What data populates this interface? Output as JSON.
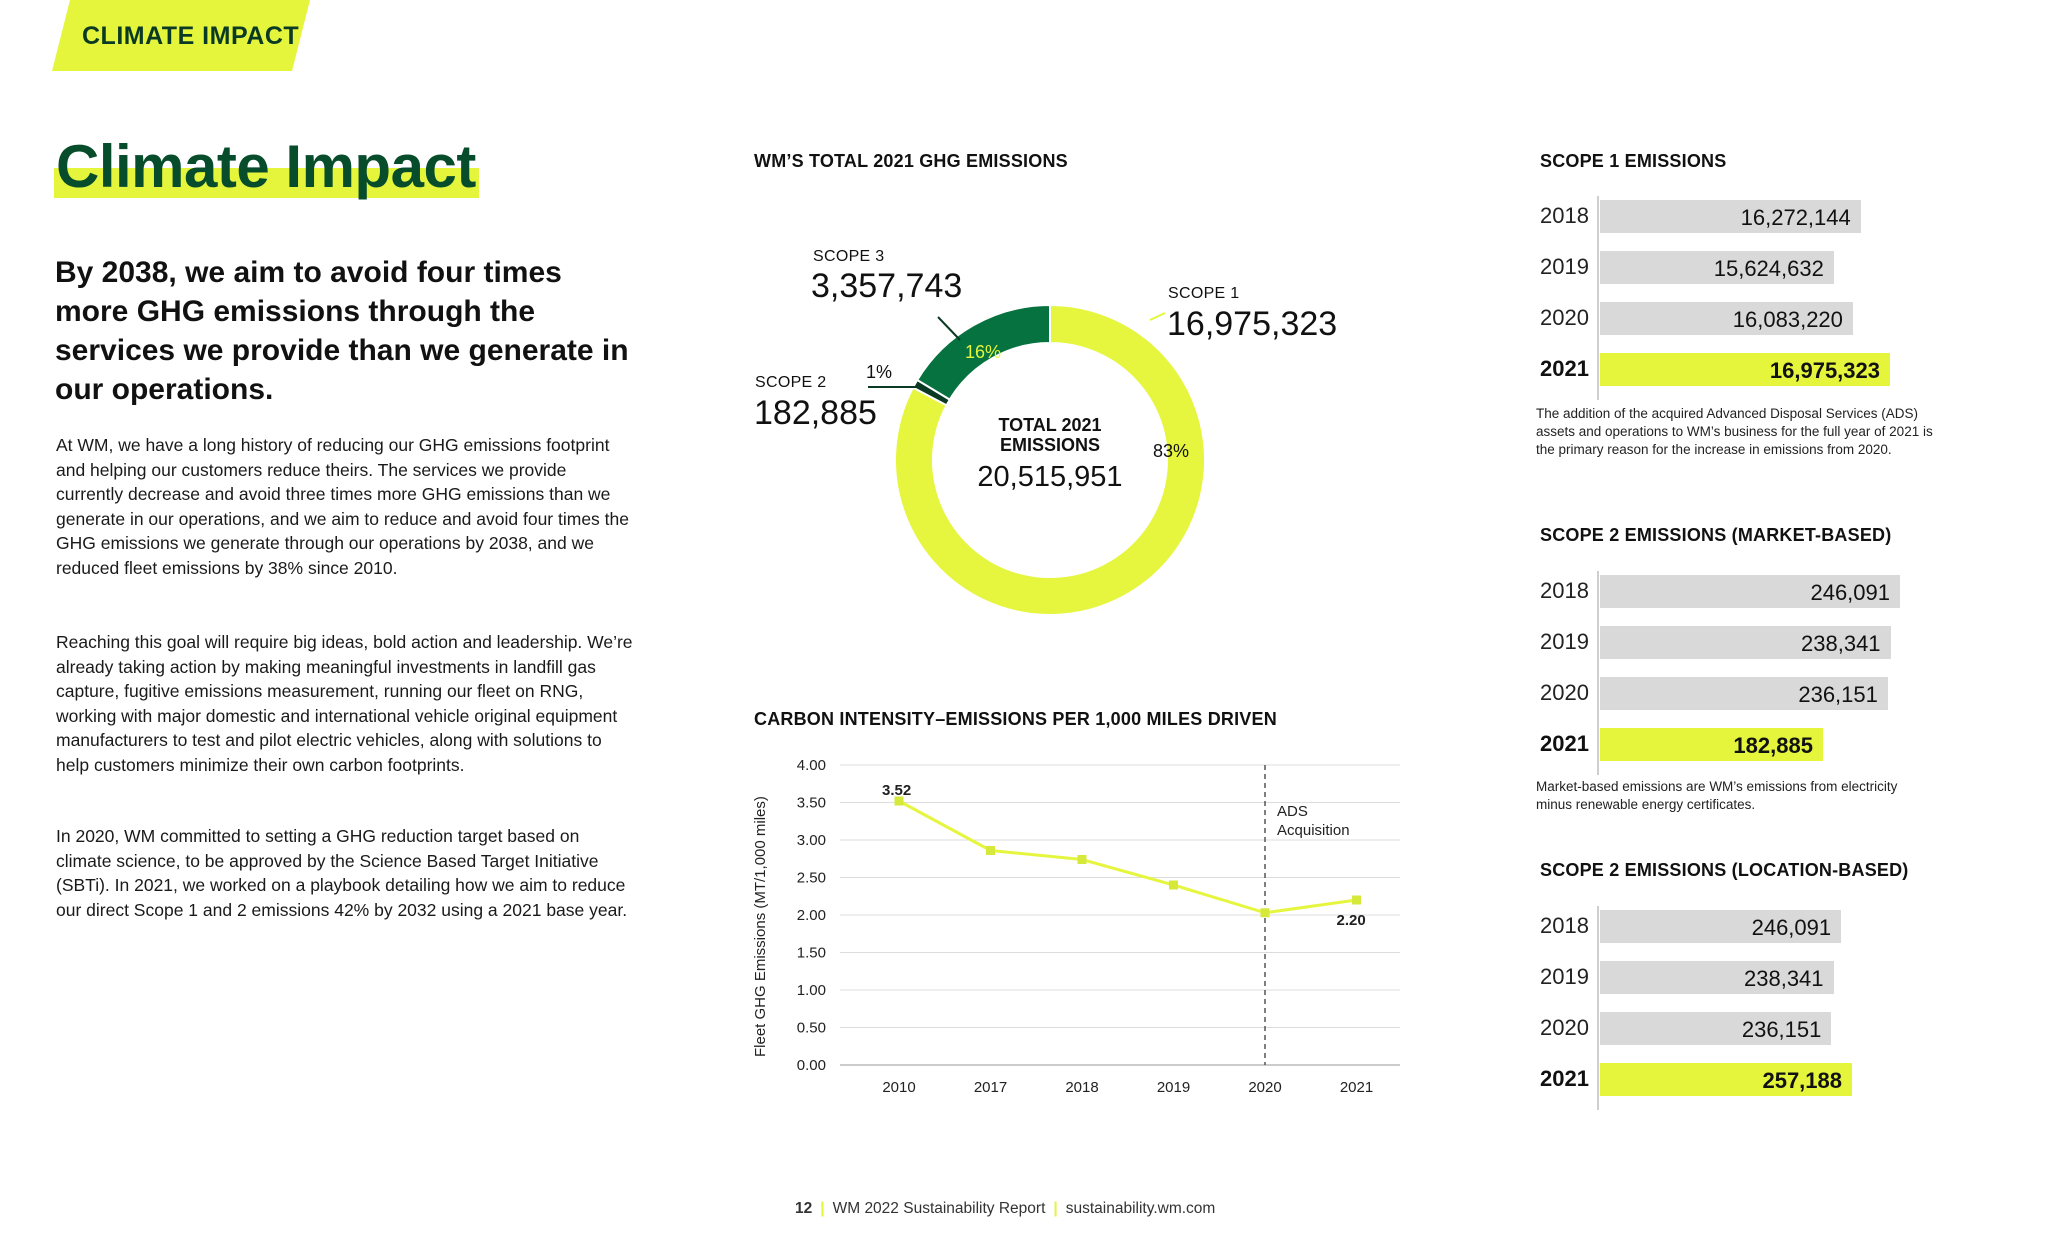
{
  "section_tag": "CLIMATE IMPACT",
  "title": "Climate Impact",
  "lead": "By 2038, we aim to avoid four times more GHG emissions through the services we provide than we generate in our operations.",
  "paragraphs": [
    "At WM, we have a long history of reducing our GHG emissions footprint and helping our customers reduce theirs. The services we provide currently decrease and avoid three times more GHG emissions than we generate in our operations, and we aim to reduce and avoid four times the GHG emissions we generate through our operations by 2038, and we reduced fleet emissions by 38% since 2010.",
    "Reaching this goal will require big ideas, bold action and leadership. We’re already taking action by making meaningful investments in landfill gas capture, fugitive emissions measurement, running our fleet on RNG, working with major domestic and international vehicle original equipment manufacturers to test and pilot electric vehicles, along with solutions to help customers minimize their own carbon footprints.",
    "In 2020, WM committed to setting a GHG reduction target based on climate science, to be approved by the Science Based Target Initiative (SBTi). In 2021, we worked on a playbook detailing how we aim to reduce our direct Scope 1 and 2 emissions 42% by 2032 using a 2021 base year."
  ],
  "donut": {
    "title": "WM’S TOTAL 2021 GHG EMISSIONS",
    "center_label_1": "TOTAL 2021",
    "center_label_2": "EMISSIONS",
    "center_value": "20,515,951",
    "scope1_label": "SCOPE 1",
    "scope1_value": "16,975,323",
    "scope1_pct": "83%",
    "scope2_label": "SCOPE 2",
    "scope2_value": "182,885",
    "scope2_pct": "1%",
    "scope3_label": "SCOPE 3",
    "scope3_value": "3,357,743",
    "scope3_pct": "16%"
  },
  "chart_data": [
    {
      "type": "pie",
      "title": "WM’S TOTAL 2021 GHG EMISSIONS",
      "categories": [
        "SCOPE 1",
        "SCOPE 2",
        "SCOPE 3"
      ],
      "values": [
        16975323,
        182885,
        3357743
      ],
      "percent_labels": [
        "83%",
        "1%",
        "16%"
      ],
      "colors": [
        "#e6f53e",
        "#0b3a24",
        "#067240"
      ],
      "total": 20515951
    },
    {
      "type": "line",
      "title": "CARBON INTENSITY–EMISSIONS PER 1,000 MILES DRIVEN",
      "ylabel": "Fleet GHG Emissions (MT/1,000 miles)",
      "xlabel": "",
      "categories": [
        "2010",
        "2017",
        "2018",
        "2019",
        "2020",
        "2021"
      ],
      "values": [
        3.52,
        2.86,
        2.74,
        2.4,
        2.03,
        2.2
      ],
      "point_labels": {
        "2010": "3.52",
        "2021": "2.20"
      },
      "ylim": [
        0,
        4
      ],
      "y_ticks": [
        "0.00",
        "0.50",
        "1.00",
        "1.50",
        "2.00",
        "2.50",
        "3.00",
        "3.50",
        "4.00"
      ],
      "grid": true,
      "line_color": "#e6f53e",
      "annotation": {
        "at": "2020",
        "text_1": "ADS",
        "text_2": "Acquisition"
      }
    },
    {
      "type": "bar",
      "title": "SCOPE 1 EMISSIONS",
      "categories": [
        "2018",
        "2019",
        "2020",
        "2021"
      ],
      "values": [
        16272144,
        15624632,
        16083220,
        16975323
      ],
      "labels": [
        "16,272,144",
        "15,624,632",
        "16,083,220",
        "16,975,323"
      ],
      "highlight": "2021",
      "axis_min": 10000000,
      "axis_max": 17600000
    },
    {
      "type": "bar",
      "title": "SCOPE 2 EMISSIONS (MARKET-BASED)",
      "categories": [
        "2018",
        "2019",
        "2020",
        "2021"
      ],
      "values": [
        246091,
        238341,
        236151,
        182885
      ],
      "labels": [
        "246,091",
        "238,341",
        "236,151",
        "182,885"
      ],
      "highlight": "2021",
      "axis_min": 0,
      "axis_max": 250000
    },
    {
      "type": "bar",
      "title": "SCOPE 2 EMISSIONS (LOCATION-BASED)",
      "categories": [
        "2018",
        "2019",
        "2020",
        "2021"
      ],
      "values": [
        246091,
        238341,
        236151,
        257188
      ],
      "labels": [
        "246,091",
        "238,341",
        "236,151",
        "257,188"
      ],
      "highlight": "2021",
      "axis_min": 0,
      "axis_max": 280000
    }
  ],
  "notes": {
    "scope1": "The addition of the acquired Advanced Disposal Services (ADS) assets and operations to WM’s business for the full year of 2021 is the primary reason for the increase in emissions from 2020.",
    "scope2_market": "Market-based emissions are WM’s emissions from electricity minus renewable energy certificates."
  },
  "footer": {
    "page": "12",
    "report": "WM 2022 Sustainability Report",
    "url": "sustainability.wm.com"
  },
  "colors": {
    "lime": "#e4f53c",
    "dark_green": "#074d2c",
    "mid_green": "#067240",
    "bar_gray": "#d9d9d9"
  }
}
